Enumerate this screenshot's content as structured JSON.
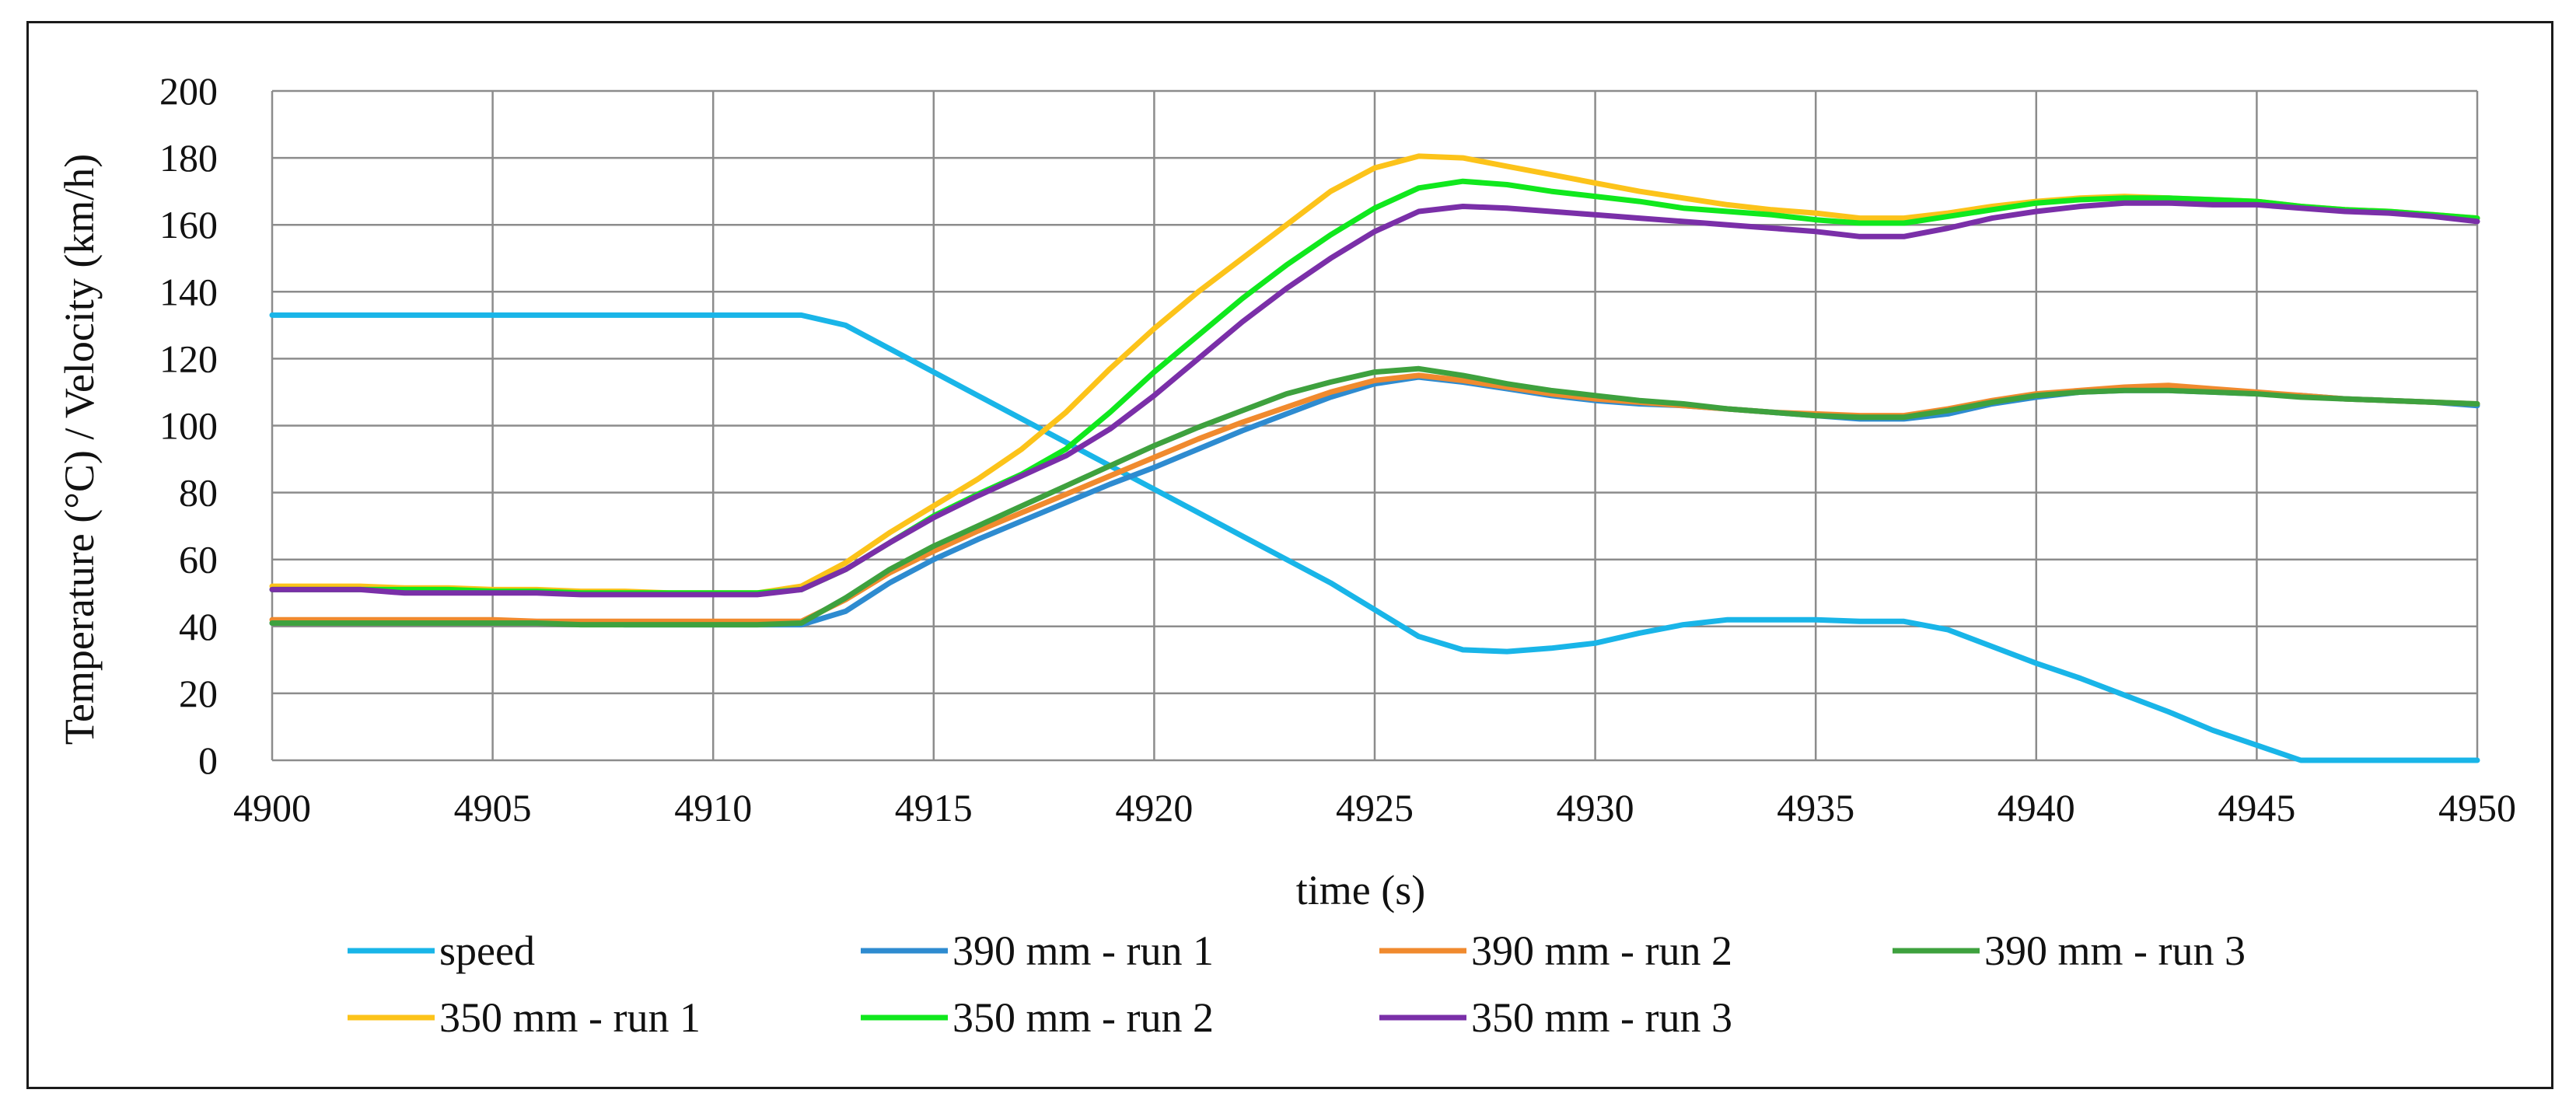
{
  "chart_data": {
    "type": "line",
    "title": "",
    "xlabel": "time (s)",
    "ylabel": "Temperature (°C) / Velocity (km/h)",
    "xlim": [
      4900,
      4950
    ],
    "ylim": [
      0,
      200
    ],
    "xticks": [
      4900,
      4905,
      4910,
      4915,
      4920,
      4925,
      4930,
      4935,
      4940,
      4945,
      4950
    ],
    "yticks": [
      0,
      20,
      40,
      60,
      80,
      100,
      120,
      140,
      160,
      180,
      200
    ],
    "xtick_labels": [
      "4900",
      "4905",
      "4910",
      "4915",
      "4920",
      "4925",
      "4930",
      "4935",
      "4940",
      "4945",
      "4950"
    ],
    "ytick_labels": [
      "0",
      "20",
      "40",
      "60",
      "80",
      "100",
      "120",
      "140",
      "160",
      "180",
      "200"
    ],
    "grid": true,
    "legend_position": "bottom",
    "x": [
      4900,
      4901,
      4902,
      4903,
      4904,
      4905,
      4906,
      4907,
      4908,
      4909,
      4910,
      4911,
      4912,
      4913,
      4914,
      4915,
      4916,
      4917,
      4918,
      4919,
      4920,
      4921,
      4922,
      4923,
      4924,
      4925,
      4926,
      4927,
      4928,
      4929,
      4930,
      4931,
      4932,
      4933,
      4934,
      4935,
      4936,
      4937,
      4938,
      4939,
      4940,
      4941,
      4942,
      4943,
      4944,
      4945,
      4946,
      4947,
      4948,
      4949,
      4950
    ],
    "series": [
      {
        "name": "speed",
        "color": "#19b5e8",
        "values": [
          133,
          133,
          133,
          133,
          133,
          133,
          133,
          133,
          133,
          133,
          133,
          133,
          133,
          130,
          123,
          116,
          109,
          102,
          95,
          88,
          81,
          74,
          67,
          60,
          53,
          45,
          37,
          33,
          32.5,
          33.5,
          35,
          38,
          40.5,
          42,
          42,
          42,
          41.5,
          41.5,
          39,
          34,
          29,
          24.5,
          19.5,
          14.5,
          9,
          4.5,
          0,
          0,
          0,
          0,
          0
        ]
      },
      {
        "name": "390 mm - run 1",
        "color": "#2e8bd0",
        "values": [
          41,
          41,
          41,
          41,
          41,
          41,
          41,
          41,
          40.5,
          40.5,
          40.5,
          40.5,
          40.5,
          44.5,
          53,
          60,
          66,
          71.5,
          77,
          82.5,
          87.5,
          93,
          98.5,
          103.5,
          108.5,
          112.5,
          114.5,
          113,
          111,
          109,
          107.5,
          106.5,
          106,
          105,
          104,
          103,
          102,
          102,
          103.5,
          106.5,
          108.5,
          110,
          110.5,
          110.5,
          110,
          109.5,
          109,
          108,
          107.5,
          107,
          106
        ]
      },
      {
        "name": "390 mm - run 2",
        "color": "#f08a2e",
        "values": [
          42,
          42,
          42,
          42,
          42,
          42,
          41.5,
          41.5,
          41.5,
          41.5,
          41.5,
          41.5,
          41.5,
          48,
          56,
          62.5,
          68.5,
          74,
          79.5,
          85,
          90.5,
          96,
          101,
          105.5,
          110,
          113.5,
          115,
          113.5,
          111.5,
          109.5,
          108,
          107,
          106,
          105,
          104,
          103.5,
          103,
          103,
          105,
          107.5,
          109.5,
          110.5,
          111.5,
          112,
          111,
          110,
          109,
          108,
          107.5,
          107,
          106.5
        ]
      },
      {
        "name": "390 mm - run 3",
        "color": "#3ea13e",
        "values": [
          41,
          41,
          41,
          41,
          41,
          41,
          41,
          40.5,
          40.5,
          40.5,
          40.5,
          40.5,
          41,
          48.5,
          57,
          64,
          70,
          76,
          82,
          88,
          94,
          99.5,
          104.5,
          109.5,
          113,
          116,
          117,
          115,
          112.5,
          110.5,
          109,
          107.5,
          106.5,
          105,
          104,
          103,
          102.5,
          102.5,
          104.5,
          107,
          109,
          110,
          110.5,
          110.5,
          110,
          109.5,
          108.5,
          108,
          107.5,
          107,
          106.5
        ]
      },
      {
        "name": "350 mm - run 1",
        "color": "#fcc31a",
        "values": [
          52,
          52,
          52,
          51.5,
          51.5,
          51,
          51,
          50.5,
          50.5,
          50,
          50,
          50,
          52,
          59,
          68,
          76,
          84,
          93,
          104,
          117,
          129,
          140,
          150,
          160,
          170,
          177,
          180.5,
          180,
          177.5,
          175,
          172.5,
          170,
          168,
          166,
          164.5,
          163.5,
          162,
          162,
          163.5,
          165.5,
          167,
          168,
          168.5,
          168,
          167.5,
          167,
          165.5,
          164.5,
          164,
          163,
          162
        ]
      },
      {
        "name": "350 mm - run 2",
        "color": "#10e81d",
        "values": [
          51,
          51,
          51,
          51,
          51,
          50.5,
          50.5,
          50,
          50,
          50,
          50,
          50,
          51,
          57,
          65,
          73,
          79.5,
          85.5,
          93,
          104,
          116,
          127,
          138,
          148,
          157,
          165,
          171,
          173,
          172,
          170,
          168.5,
          167,
          165,
          164,
          163,
          161.5,
          160.5,
          160.5,
          162.5,
          164.5,
          166.5,
          167.5,
          168,
          168,
          167.5,
          167,
          165.5,
          164.5,
          164,
          163,
          162
        ]
      },
      {
        "name": "350 mm - run 3",
        "color": "#7a2fa8",
        "values": [
          51,
          51,
          51,
          50,
          50,
          50,
          50,
          49.5,
          49.5,
          49.5,
          49.5,
          49.5,
          51,
          57,
          65,
          72.5,
          79,
          85,
          91,
          99,
          109,
          120,
          131,
          141,
          150,
          158,
          164,
          165.5,
          165,
          164,
          163,
          162,
          161,
          160,
          159,
          158,
          156.5,
          156.5,
          159,
          162,
          164,
          165.5,
          166.5,
          166.5,
          166,
          166,
          165,
          164,
          163.5,
          162.5,
          161
        ]
      }
    ]
  }
}
